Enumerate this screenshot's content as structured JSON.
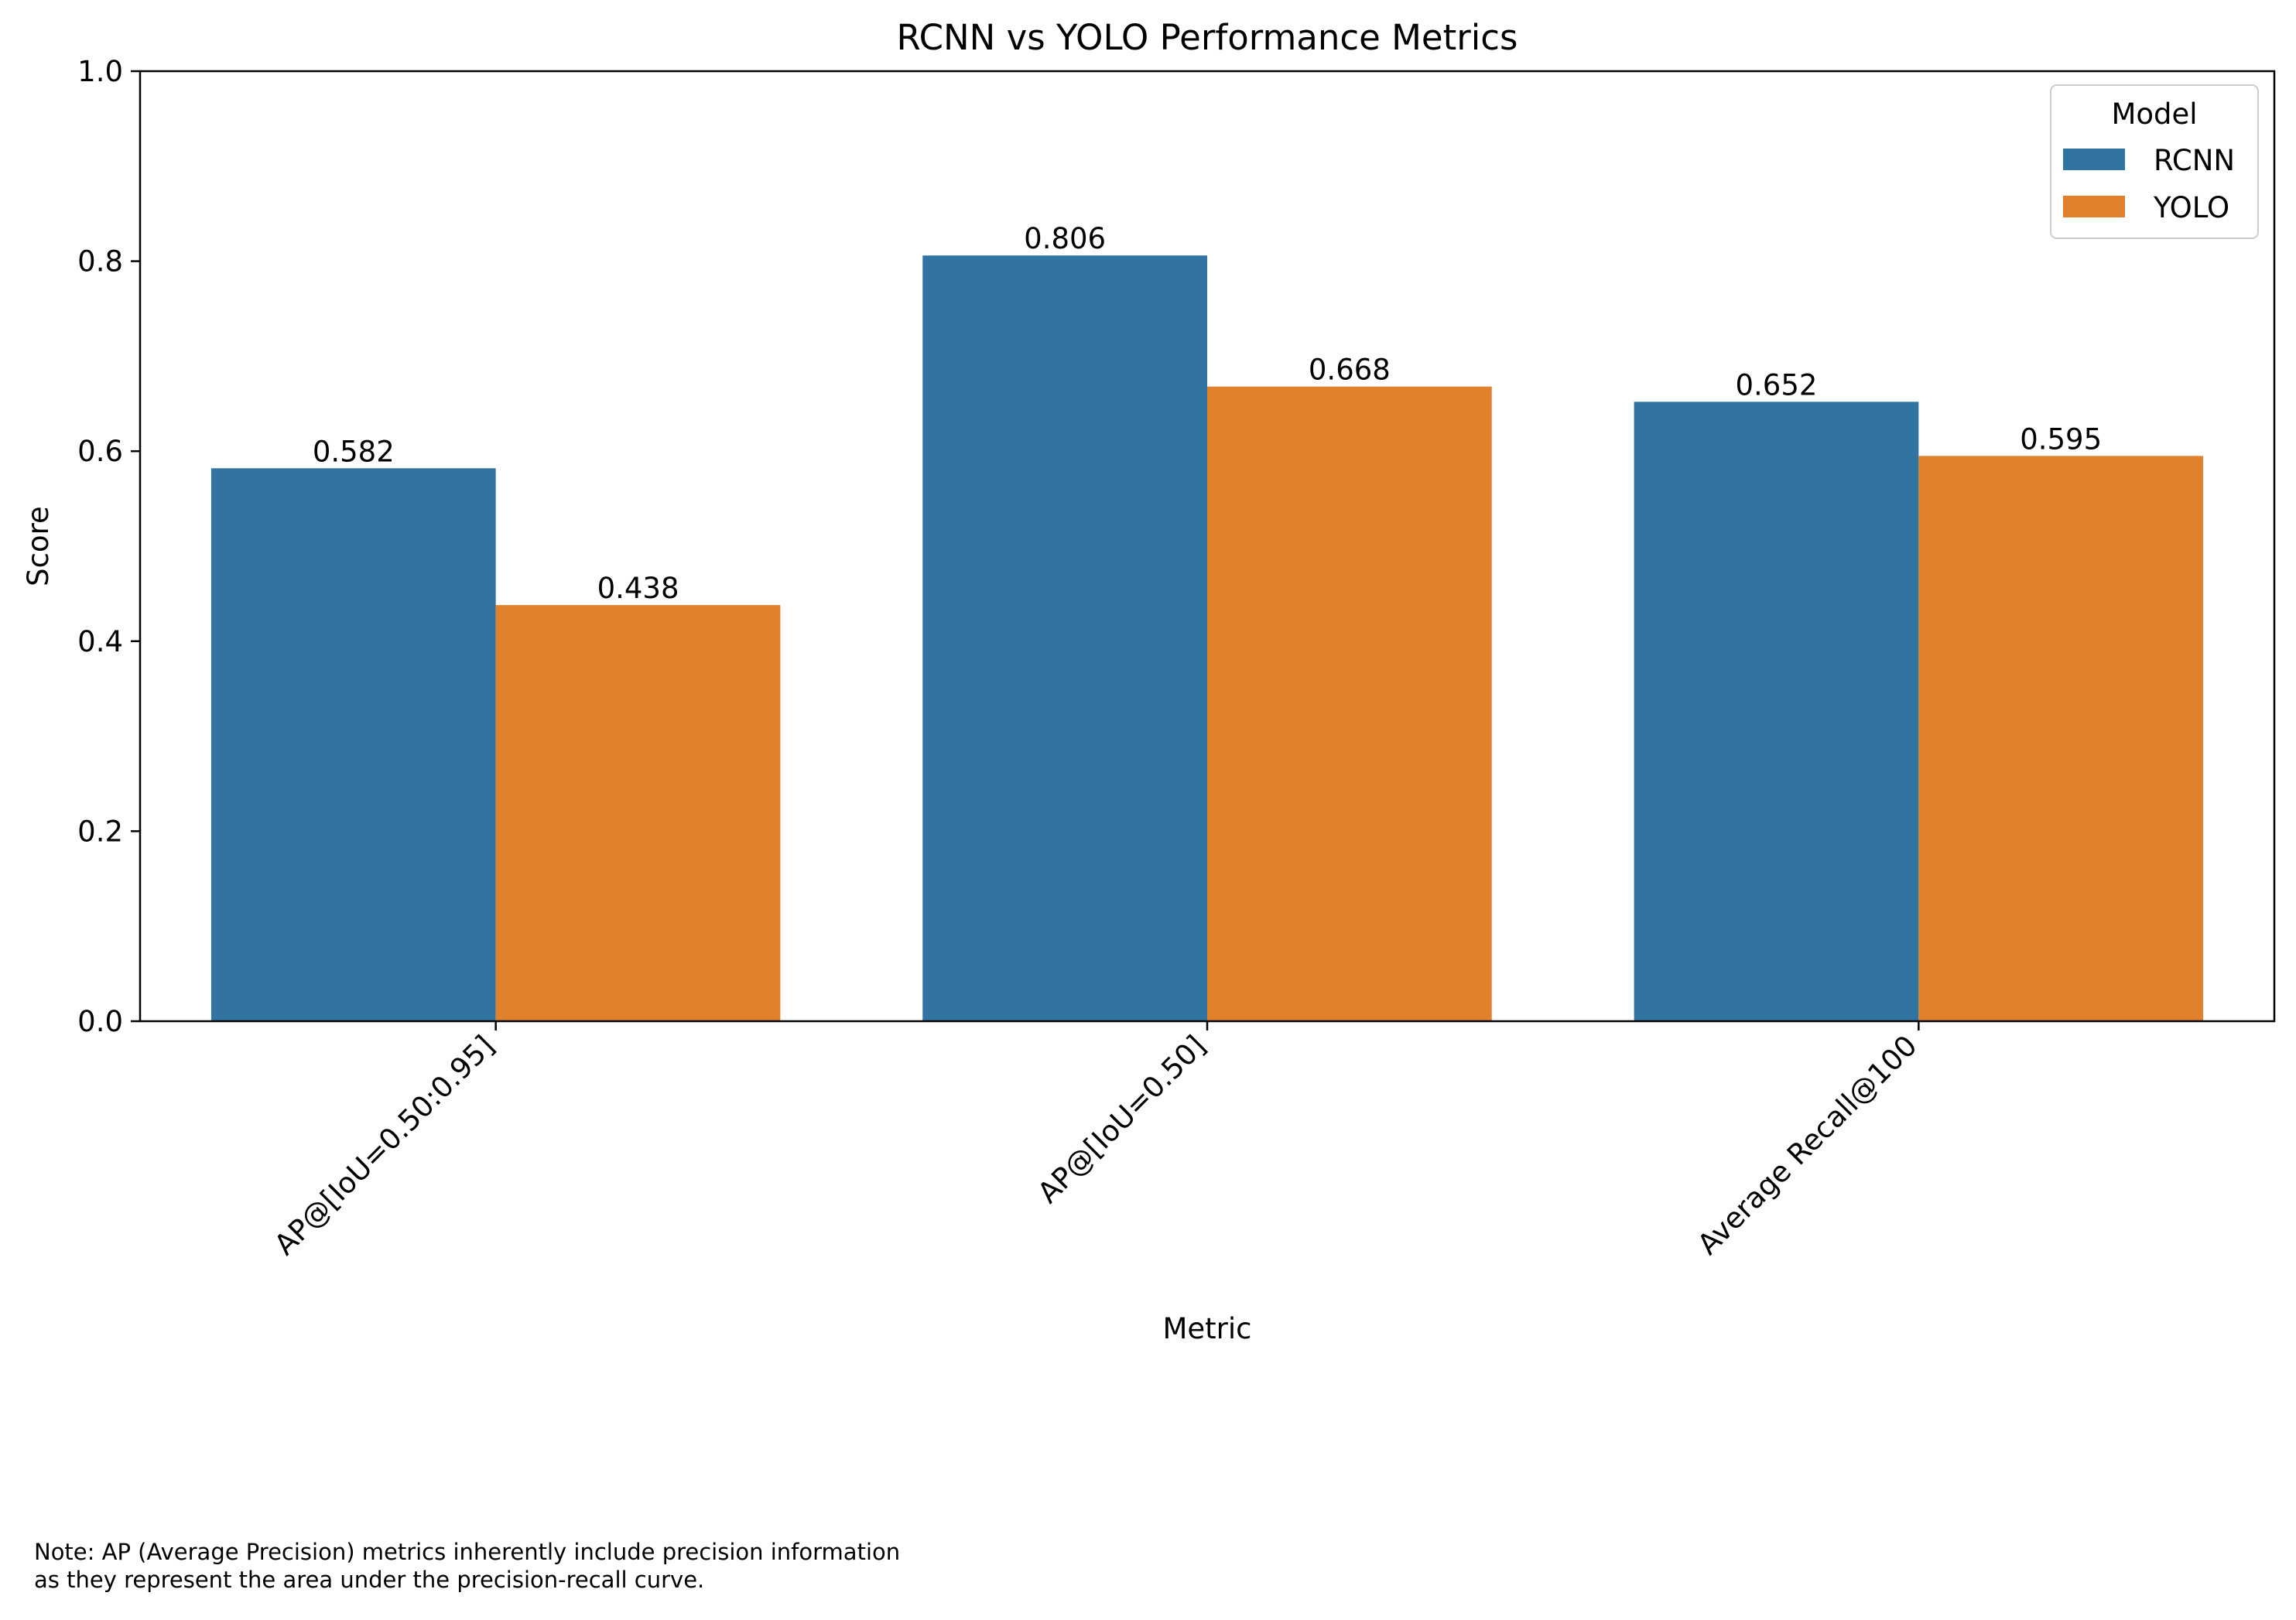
{
  "chart_data": {
    "type": "bar",
    "title": "RCNN vs YOLO Performance Metrics",
    "xlabel": "Metric",
    "ylabel": "Score",
    "categories": [
      "AP@[IoU=0.50:0.95]",
      "AP@[IoU=0.50]",
      "Average Recall@100"
    ],
    "series": [
      {
        "name": "RCNN",
        "values": [
          0.582,
          0.806,
          0.652
        ],
        "labels": [
          "0.582",
          "0.806",
          "0.652"
        ],
        "color": "#3274a1"
      },
      {
        "name": "YOLO",
        "values": [
          0.438,
          0.668,
          0.595
        ],
        "labels": [
          "0.438",
          "0.668",
          "0.595"
        ],
        "color": "#e1812c"
      }
    ],
    "ylim": [
      0,
      1
    ],
    "yticks": [
      "0.0",
      "0.2",
      "0.4",
      "0.6",
      "0.8",
      "1.0"
    ],
    "grid": false,
    "legend": {
      "title": "Model",
      "placement": "top-right"
    }
  },
  "note": {
    "line1": "Note: AP (Average Precision) metrics inherently include precision information",
    "line2": "as they represent the area under the precision-recall curve."
  }
}
